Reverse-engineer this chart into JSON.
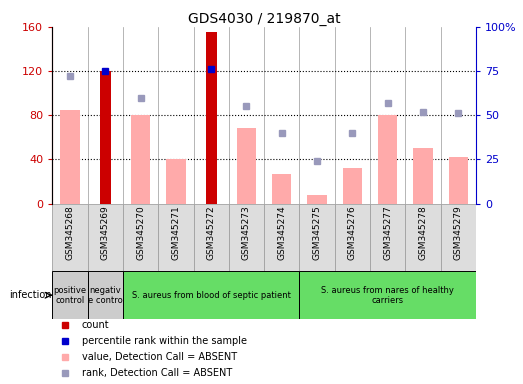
{
  "title": "GDS4030 / 219870_at",
  "samples": [
    "GSM345268",
    "GSM345269",
    "GSM345270",
    "GSM345271",
    "GSM345272",
    "GSM345273",
    "GSM345274",
    "GSM345275",
    "GSM345276",
    "GSM345277",
    "GSM345278",
    "GSM345279"
  ],
  "count_values": [
    null,
    120,
    null,
    null,
    155,
    null,
    null,
    null,
    null,
    null,
    null,
    null
  ],
  "value_absent": [
    85,
    null,
    80,
    40,
    null,
    68,
    27,
    8,
    32,
    80,
    50,
    42
  ],
  "rank_absent_pct": [
    72,
    null,
    60,
    null,
    null,
    55,
    40,
    24,
    40,
    57,
    52,
    51
  ],
  "percentile_dark_pct": [
    null,
    75,
    null,
    null,
    76,
    null,
    null,
    null,
    null,
    null,
    null,
    null
  ],
  "ylim_left": [
    0,
    160
  ],
  "ylim_right": [
    0,
    100
  ],
  "yticks_left": [
    0,
    40,
    80,
    120,
    160
  ],
  "yticks_right": [
    0,
    25,
    50,
    75,
    100
  ],
  "ytick_labels_right": [
    "0",
    "25",
    "50",
    "75",
    "100%"
  ],
  "groups": [
    {
      "label": "positive\ncontrol",
      "start": 0,
      "end": 1,
      "color": "#cccccc"
    },
    {
      "label": "negativ\ne contro",
      "start": 1,
      "end": 2,
      "color": "#cccccc"
    },
    {
      "label": "S. aureus from blood of septic patient",
      "start": 2,
      "end": 7,
      "color": "#66dd66"
    },
    {
      "label": "S. aureus from nares of healthy\ncarriers",
      "start": 7,
      "end": 12,
      "color": "#66dd66"
    }
  ],
  "bar_width": 0.55,
  "count_color": "#cc0000",
  "value_absent_color": "#ffaaaa",
  "rank_absent_color": "#9999bb",
  "percentile_color": "#0000cc",
  "bg_color": "#ffffff",
  "spine_color_left": "#cc0000",
  "spine_color_right": "#0000cc",
  "grid_dotted_color": "#000000",
  "xtick_bg": "#dddddd",
  "sep_color": "#999999"
}
